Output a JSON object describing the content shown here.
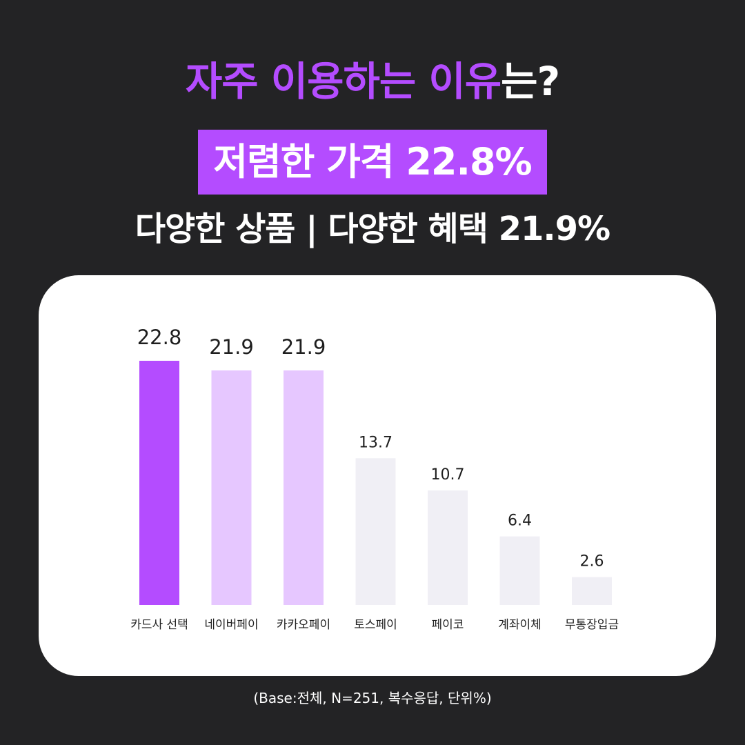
{
  "header": {
    "title_highlight": "자주 이용하는 이유",
    "title_rest": "는?",
    "badge": "저렴한 가격 22.8%",
    "subtitle": "다양한 상품 | 다양한 혜택 21.9%"
  },
  "footnote": "(Base:전체, N=251, 복수응답, 단위%)",
  "colors": {
    "background": "#232325",
    "accent": "#b44cff",
    "bar_light_purple": "#e6c7ff",
    "bar_gray": "#f0eff5",
    "card": "#ffffff"
  },
  "chart_data": {
    "type": "bar",
    "categories": [
      "카드사 선택",
      "네이버페이",
      "카카오페이",
      "토스페이",
      "페이코",
      "계좌이체",
      "무통장입금"
    ],
    "values": [
      22.8,
      21.9,
      21.9,
      13.7,
      10.7,
      6.4,
      2.6
    ],
    "value_labels": [
      "22.8",
      "21.9",
      "21.9",
      "13.7",
      "10.7",
      "6.4",
      "2.6"
    ],
    "bar_colors": [
      "#b44cff",
      "#e6c7ff",
      "#e6c7ff",
      "#f0eff5",
      "#f0eff5",
      "#f0eff5",
      "#f0eff5"
    ],
    "ylim": [
      0,
      22.8
    ],
    "grid": false,
    "legend": "none"
  }
}
